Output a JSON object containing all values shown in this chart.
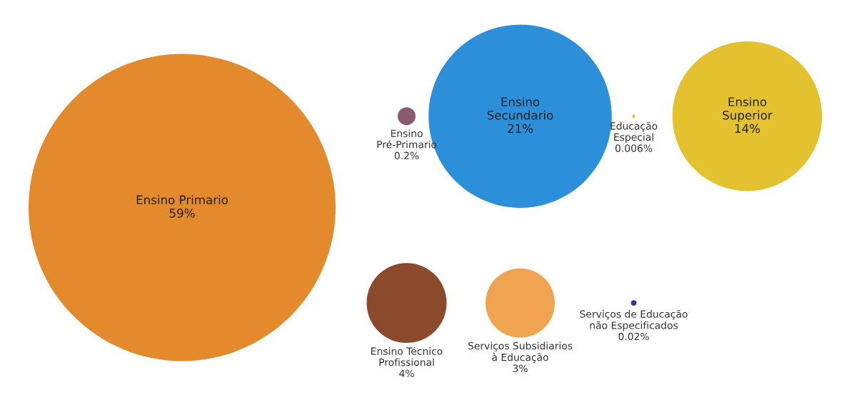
{
  "chart_data": {
    "type": "other",
    "categories": [
      "Ensino\nPré-Primario",
      "Ensino Primario",
      "Ensino\nSecundario",
      "Educação\nEspecial",
      "Ensino\nSuperior",
      "Ensino Técnico\nProfissional",
      "Serviços Subsidiarios\nà Educação",
      "Serviços de Educação\nnão Especificados"
    ],
    "values": [
      0.2,
      59,
      21,
      0.006,
      14,
      4,
      3,
      0.02
    ],
    "value_labels": [
      "0.2%",
      "59%",
      "21%",
      "0.006%",
      "14%",
      "4%",
      "3%",
      "0.02%"
    ],
    "colors": [
      "#8a5a70",
      "#e38a2c",
      "#2b8fd9",
      "#e6b43c",
      "#e3c12f",
      "#8b4a2b",
      "#f0a452",
      "#2a3a9c"
    ]
  }
}
